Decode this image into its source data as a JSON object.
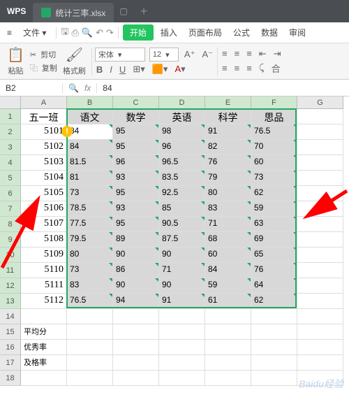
{
  "app": {
    "name": "WPS"
  },
  "tab": {
    "filename": "统计三率.xlsx"
  },
  "menu": {
    "file": "文件",
    "start": "开始",
    "items": [
      "插入",
      "页面布局",
      "公式",
      "数据",
      "审阅"
    ]
  },
  "toolbar": {
    "paste": "粘贴",
    "cut": "剪切",
    "copy": "复制",
    "format_painter": "格式刷",
    "font_name": "宋体",
    "font_size": "12",
    "merge": "合"
  },
  "formula_bar": {
    "cell_ref": "B2",
    "value": "84"
  },
  "sheet": {
    "col_letters": [
      "A",
      "B",
      "C",
      "D",
      "E",
      "F",
      "G"
    ],
    "row_numbers": [
      "1",
      "2",
      "3",
      "4",
      "5",
      "6",
      "7",
      "8",
      "9",
      "10",
      "11",
      "12",
      "13",
      "14",
      "15",
      "16",
      "17",
      "18"
    ],
    "selected_cols_start": 1,
    "selected_cols_end": 5,
    "selected_rows_start": 0,
    "selected_rows_end": 12,
    "headers": [
      "五一班",
      "语文",
      "数学",
      "英语",
      "科学",
      "思品"
    ],
    "colA": [
      "5101",
      "5102",
      "5103",
      "5104",
      "5105",
      "5106",
      "5107",
      "5108",
      "5109",
      "5110",
      "5111",
      "5112"
    ],
    "data": [
      [
        "84",
        "95",
        "98",
        "91",
        "76.5"
      ],
      [
        "84",
        "95",
        "96",
        "82",
        "70"
      ],
      [
        "81.5",
        "96",
        "96.5",
        "76",
        "60"
      ],
      [
        "81",
        "93",
        "83.5",
        "79",
        "73"
      ],
      [
        "73",
        "95",
        "92.5",
        "80",
        "62"
      ],
      [
        "78.5",
        "93",
        "85",
        "83",
        "59"
      ],
      [
        "77.5",
        "95",
        "90.5",
        "71",
        "63"
      ],
      [
        "79.5",
        "89",
        "87.5",
        "68",
        "69"
      ],
      [
        "80",
        "90",
        "90",
        "60",
        "65"
      ],
      [
        "73",
        "86",
        "71",
        "84",
        "76"
      ],
      [
        "83",
        "90",
        "90",
        "59",
        "64"
      ],
      [
        "76.5",
        "94",
        "91",
        "61",
        "62"
      ]
    ],
    "summary_labels": [
      "平均分",
      "优秀率",
      "及格率"
    ]
  },
  "colors": {
    "selection_border": "#22a865",
    "selection_fill": "#d8d8d8",
    "arrow": "#ff0000"
  },
  "watermark": "Baidu经验"
}
